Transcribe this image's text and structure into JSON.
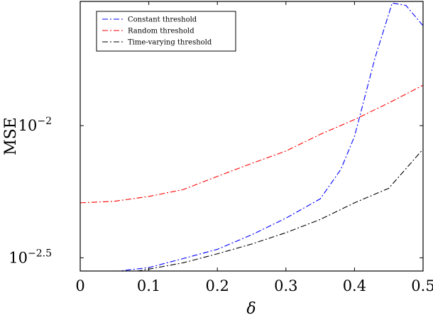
{
  "chart_data": {
    "type": "line",
    "xlabel": "δ",
    "ylabel": "MSE",
    "xlim": [
      0,
      0.5
    ],
    "ylim_log10": [
      -2.55,
      -1.53
    ],
    "y_scale": "log",
    "grid": false,
    "legend_position": "top-left",
    "x_ticks": [
      {
        "value": 0,
        "label": "0"
      },
      {
        "value": 0.1,
        "label": "0.1"
      },
      {
        "value": 0.2,
        "label": "0.2"
      },
      {
        "value": 0.3,
        "label": "0.3"
      },
      {
        "value": 0.4,
        "label": "0.4"
      },
      {
        "value": 0.5,
        "label": "0.5"
      }
    ],
    "y_ticks": [
      {
        "log10": -2,
        "base": "10",
        "exp": "−2"
      },
      {
        "log10": -2.5,
        "base": "10",
        "exp": "−2.5"
      }
    ],
    "series": [
      {
        "name": "Constant threshold",
        "color": "#0000ff",
        "dash": "8 3 2 3",
        "log10_values": [
          [
            0,
            -2.559
          ],
          [
            0.05,
            -2.552
          ],
          [
            0.1,
            -2.537
          ],
          [
            0.15,
            -2.503
          ],
          [
            0.2,
            -2.468
          ],
          [
            0.25,
            -2.413
          ],
          [
            0.3,
            -2.35
          ],
          [
            0.35,
            -2.277
          ],
          [
            0.38,
            -2.166
          ],
          [
            0.4,
            -2.041
          ],
          [
            0.43,
            -1.743
          ],
          [
            0.455,
            -1.536
          ],
          [
            0.475,
            -1.545
          ],
          [
            0.5,
            -1.622
          ]
        ]
      },
      {
        "name": "Random threshold",
        "color": "#ff0000",
        "dash": "8 3 2 3",
        "log10_values": [
          [
            0,
            -2.292
          ],
          [
            0.05,
            -2.286
          ],
          [
            0.1,
            -2.268
          ],
          [
            0.15,
            -2.242
          ],
          [
            0.2,
            -2.192
          ],
          [
            0.25,
            -2.143
          ],
          [
            0.3,
            -2.096
          ],
          [
            0.35,
            -2.033
          ],
          [
            0.4,
            -1.977
          ],
          [
            0.45,
            -1.914
          ],
          [
            0.5,
            -1.847
          ]
        ]
      },
      {
        "name": "Time-varying threshold",
        "color": "#000000",
        "dash": "8 3 2 3",
        "log10_values": [
          [
            0,
            -2.57
          ],
          [
            0.05,
            -2.564
          ],
          [
            0.1,
            -2.543
          ],
          [
            0.15,
            -2.519
          ],
          [
            0.2,
            -2.485
          ],
          [
            0.25,
            -2.448
          ],
          [
            0.3,
            -2.405
          ],
          [
            0.35,
            -2.355
          ],
          [
            0.4,
            -2.292
          ],
          [
            0.45,
            -2.237
          ],
          [
            0.5,
            -2.089
          ]
        ]
      }
    ]
  }
}
